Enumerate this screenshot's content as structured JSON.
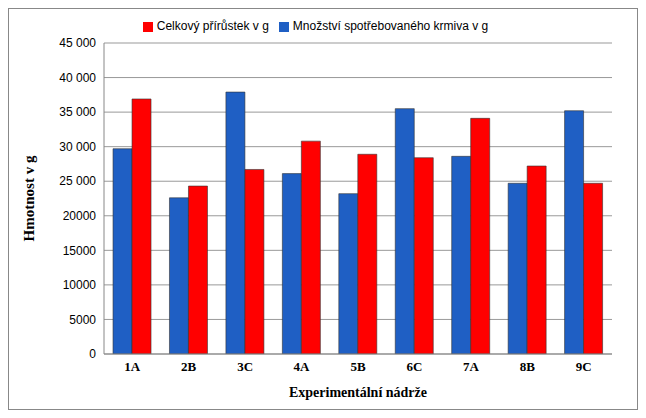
{
  "chart_data": {
    "type": "bar",
    "x_label": "Experimentální nádrže",
    "y_label": "Hmotnost v g",
    "categories": [
      "1A",
      "2B",
      "3C",
      "4A",
      "5B",
      "6C",
      "7A",
      "8B",
      "9C"
    ],
    "series": [
      {
        "name": "Množství spotřebovaného  krmiva v g",
        "color": "#1f5fc4",
        "values": [
          29700,
          22600,
          37900,
          26100,
          23200,
          35500,
          28600,
          24700,
          35200
        ]
      },
      {
        "name": "Celkový přírůstek v g",
        "color": "#ff0000",
        "values": [
          36900,
          24300,
          26700,
          30800,
          28900,
          28400,
          34100,
          27200,
          24700
        ]
      }
    ],
    "ylim": [
      0,
      45000
    ],
    "yticks": [
      0,
      5000,
      10000,
      15000,
      20000,
      {
        "value": 25000,
        "label": "25 000"
      },
      {
        "value": 30000,
        "label": "30 000"
      },
      {
        "value": 35000,
        "label": "35 000"
      },
      {
        "value": 40000,
        "label": "40 000"
      },
      {
        "value": 45000,
        "label": "45 000"
      }
    ],
    "grid": true,
    "legend": "top"
  }
}
